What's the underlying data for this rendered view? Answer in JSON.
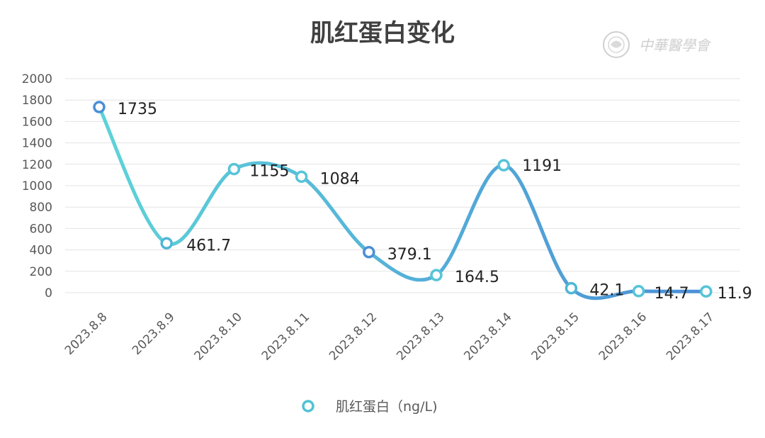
{
  "chart_data": {
    "type": "line",
    "title": "肌红蛋白变化",
    "categories": [
      "2023.8.8",
      "2023.8.9",
      "2023.8.10",
      "2023.8.11",
      "2023.8.12",
      "2023.8.13",
      "2023.8.14",
      "2023.8.15",
      "2023.8.16",
      "2023.8.17"
    ],
    "series": [
      {
        "name": "肌红蛋白（ng/L)",
        "values": [
          1735,
          461.7,
          1155,
          1084,
          379.1,
          164.5,
          1191,
          42.1,
          14.7,
          11.9
        ],
        "labels": [
          "1735",
          "461.7",
          "1155",
          "1084",
          "379.1",
          "164.5",
          "1191",
          "42.1",
          "14.7",
          "11.9"
        ]
      }
    ],
    "ylim": [
      0,
      2000
    ],
    "yticks": [
      "0",
      "200",
      "400",
      "600",
      "800",
      "1000",
      "1200",
      "1400",
      "1600",
      "1800",
      "2000"
    ],
    "grid": true,
    "smooth": true,
    "legend": "bottom",
    "colors": {
      "line_start": "#5bcfd6",
      "line_end": "#4a90d6",
      "marker_fill": "#ffffff",
      "title": "#404040"
    }
  },
  "watermark": {
    "text": "中華醫學會",
    "icon": "association-seal-icon"
  }
}
